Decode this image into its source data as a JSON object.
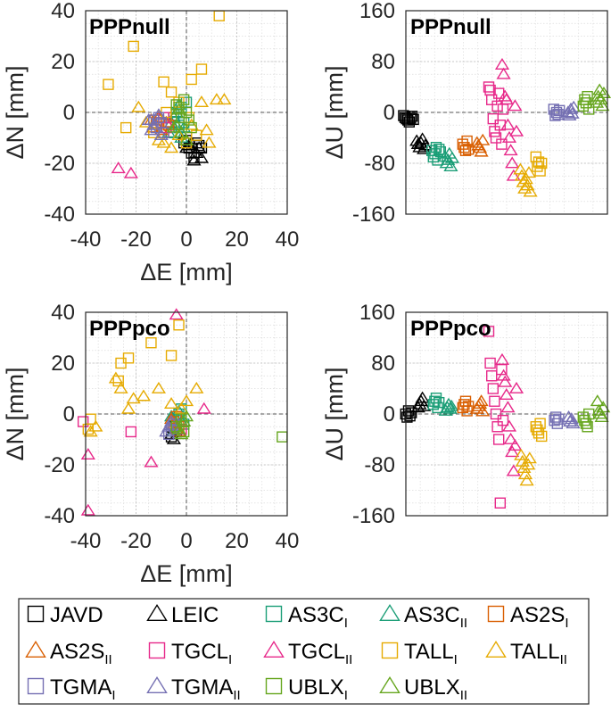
{
  "chart_data": [
    {
      "type": "scatter",
      "title": "PPPnull",
      "xlabel": "ΔE [mm]",
      "ylabel": "ΔN [mm]",
      "xlim": [
        -40,
        40
      ],
      "ylim": [
        -40,
        40
      ],
      "xticks": [
        "-40",
        "-20",
        "0",
        "20",
        "40"
      ],
      "yticks": [
        "-40",
        "-20",
        "0",
        "20",
        "40"
      ],
      "grid": true,
      "description": "Horizontal position errors per receiver/antenna",
      "series": [
        {
          "name": "JAVD",
          "x": [
            -1,
            1,
            2,
            4,
            6,
            3,
            0,
            5
          ],
          "y": [
            -12,
            -14,
            -16,
            -12,
            -14,
            -18,
            -11,
            -13
          ]
        },
        {
          "name": "LEIC",
          "x": [
            0,
            2,
            4,
            6,
            3,
            5,
            1
          ],
          "y": [
            -14,
            -12,
            -16,
            -18,
            -19,
            -14,
            -13
          ]
        },
        {
          "name": "AS3C_I",
          "x": [
            -5,
            -3,
            -6,
            -2,
            -4,
            -1,
            0,
            -3
          ],
          "y": [
            -2,
            -5,
            -8,
            2,
            0,
            -4,
            4,
            -6
          ]
        },
        {
          "name": "AS3C_II",
          "x": [
            -6,
            -4,
            -2,
            -5,
            -3,
            -1,
            -7
          ],
          "y": [
            -4,
            0,
            -10,
            -2,
            3,
            -6,
            -8
          ]
        },
        {
          "name": "AS2S_I",
          "x": [
            -12,
            -10,
            -8,
            -9,
            -11,
            -7
          ],
          "y": [
            -4,
            -6,
            -2,
            -8,
            -3,
            -5
          ]
        },
        {
          "name": "AS2S_II",
          "x": [
            -14,
            -12,
            -10,
            -11,
            -8,
            -13
          ],
          "y": [
            -3,
            -5,
            -7,
            -2,
            -4,
            -6
          ]
        },
        {
          "name": "TGCL_I",
          "x": [
            -10,
            -8,
            -9
          ],
          "y": [
            -4,
            -6,
            -2
          ]
        },
        {
          "name": "TGCL_II",
          "x": [
            -27,
            -22
          ],
          "y": [
            -22,
            -24
          ]
        },
        {
          "name": "TALL_I",
          "x": [
            13,
            -21,
            -31,
            -24,
            6,
            -9,
            2,
            -6,
            -3,
            1,
            4,
            -13,
            -8,
            0
          ],
          "y": [
            38,
            26,
            11,
            -6,
            17,
            12,
            13,
            8,
            4,
            -2,
            -9,
            -8,
            0,
            -12
          ]
        },
        {
          "name": "TALL_II",
          "x": [
            -19,
            -11,
            -6,
            2,
            6,
            12,
            15,
            -16,
            -9,
            -3,
            8,
            9
          ],
          "y": [
            2,
            -11,
            -14,
            -5,
            4,
            5,
            5,
            -4,
            -12,
            -9,
            -7,
            -12
          ]
        },
        {
          "name": "TGMA_I",
          "x": [
            -13,
            -12,
            -10,
            -11,
            -9
          ],
          "y": [
            -3,
            -6,
            -4,
            -2,
            -8
          ]
        },
        {
          "name": "TGMA_II",
          "x": [
            -15,
            -13,
            -11,
            -14,
            -10
          ],
          "y": [
            -3,
            -5,
            -1,
            -7,
            -9
          ]
        },
        {
          "name": "UBLX_I",
          "x": [
            -3,
            -1,
            1,
            -2,
            0,
            -4,
            2
          ],
          "y": [
            2,
            5,
            -3,
            -2,
            0,
            3,
            -6
          ]
        },
        {
          "name": "UBLX_II",
          "x": [
            -4,
            -2,
            0,
            -3,
            -5
          ],
          "y": [
            -5,
            -8,
            -11,
            1,
            -6
          ]
        }
      ]
    },
    {
      "type": "scatter",
      "title": "PPPnull",
      "xlabel": "",
      "ylabel": "ΔU [mm]",
      "ylim": [
        -160,
        160
      ],
      "yticks": [
        "-160",
        "-80",
        "0",
        "80",
        "160"
      ],
      "grid": true,
      "description": "Vertical errors per receiver group (x is sample index)",
      "series": [
        {
          "name": "JAVD",
          "y": [
            -5,
            -8,
            -10,
            -12,
            -15,
            -9,
            -6,
            -11
          ]
        },
        {
          "name": "LEIC",
          "y": [
            -45,
            -50,
            -55,
            -48,
            -42,
            -58,
            -52
          ]
        },
        {
          "name": "AS3C_I",
          "y": [
            -60,
            -70,
            -65,
            -55,
            -75,
            -58,
            -62
          ]
        },
        {
          "name": "AS3C_II",
          "y": [
            -70,
            -80,
            -75,
            -65,
            -85,
            -72
          ]
        },
        {
          "name": "AS2S_I",
          "y": [
            -50,
            -55,
            -60,
            -45,
            -58
          ]
        },
        {
          "name": "AS2S_II",
          "y": [
            -48,
            -52,
            -56,
            -62,
            -44
          ]
        },
        {
          "name": "TGCL_I",
          "y": [
            40,
            35,
            20,
            -10,
            -30,
            -40,
            10,
            30,
            -20,
            -50,
            5
          ]
        },
        {
          "name": "TGCL_II",
          "y": [
            75,
            60,
            25,
            20,
            -20,
            -40,
            -60,
            -80,
            -100,
            10,
            -30
          ]
        },
        {
          "name": "TALL_I",
          "y": [
            -70,
            -85,
            -78,
            -92,
            -80
          ]
        },
        {
          "name": "TALL_II",
          "y": [
            -90,
            -100,
            -110,
            -120,
            -105,
            -115,
            -95,
            -125
          ]
        },
        {
          "name": "TGMA_I",
          "y": [
            5,
            -5,
            0,
            -3,
            3
          ]
        },
        {
          "name": "TGMA_II",
          "y": [
            0,
            -5,
            5,
            -2,
            8
          ]
        },
        {
          "name": "UBLX_I",
          "y": [
            10,
            20,
            15,
            25,
            5
          ]
        },
        {
          "name": "UBLX_II",
          "y": [
            15,
            25,
            35,
            20,
            10,
            30
          ]
        }
      ]
    },
    {
      "type": "scatter",
      "title": "PPPpco",
      "xlabel": "ΔE [mm]",
      "ylabel": "ΔN [mm]",
      "xlim": [
        -40,
        40
      ],
      "ylim": [
        -40,
        40
      ],
      "xticks": [
        "-40",
        "-20",
        "0",
        "20",
        "40"
      ],
      "yticks": [
        "-40",
        "-20",
        "0",
        "20",
        "40"
      ],
      "grid": true,
      "description": "Horizontal position errors after PCO correction",
      "series": [
        {
          "name": "JAVD",
          "x": [
            -6,
            -4,
            -5
          ],
          "y": [
            -9,
            -7,
            -5
          ]
        },
        {
          "name": "LEIC",
          "x": [
            -6,
            -4,
            -5
          ],
          "y": [
            -8,
            -6,
            -10
          ]
        },
        {
          "name": "AS3C_I",
          "x": [
            -5,
            -3,
            -1,
            -4,
            -2
          ],
          "y": [
            -2,
            0,
            -4,
            -6,
            2
          ]
        },
        {
          "name": "AS3C_II",
          "x": [
            -6,
            -4,
            -2,
            -5,
            -3
          ],
          "y": [
            -1,
            -5,
            -3,
            -7,
            1
          ]
        },
        {
          "name": "AS2S_I",
          "x": [
            -5,
            -3,
            -4,
            -2
          ],
          "y": [
            -3,
            -5,
            -1,
            -6
          ]
        },
        {
          "name": "AS2S_II",
          "x": [
            -6,
            -4,
            -5,
            -3
          ],
          "y": [
            -2,
            -6,
            -4,
            -7
          ]
        },
        {
          "name": "TGCL_I",
          "x": [
            -41,
            -22,
            -2
          ],
          "y": [
            -3,
            -7,
            -6
          ]
        },
        {
          "name": "TGCL_II",
          "x": [
            -39,
            -39,
            -14,
            7,
            -4
          ],
          "y": [
            -16,
            -38,
            -19,
            2,
            39
          ]
        },
        {
          "name": "TALL_I",
          "x": [
            -26,
            -27,
            -23,
            -14,
            -6,
            -3,
            -38,
            -39
          ],
          "y": [
            20,
            13,
            22,
            28,
            23,
            35,
            -2,
            -6
          ]
        },
        {
          "name": "TALL_II",
          "x": [
            -26,
            -28,
            -21,
            -23,
            -11,
            -6,
            0,
            4,
            -17,
            -2,
            -36,
            -38
          ],
          "y": [
            10,
            14,
            6,
            2,
            10,
            4,
            5,
            10,
            7,
            2,
            -5,
            -7
          ]
        },
        {
          "name": "TGMA_I",
          "x": [
            -7,
            -5,
            -6
          ],
          "y": [
            -8,
            -4,
            -6
          ]
        },
        {
          "name": "TGMA_II",
          "x": [
            -8,
            -6,
            -7
          ],
          "y": [
            -7,
            -3,
            -5
          ]
        },
        {
          "name": "UBLX_I",
          "x": [
            38,
            -4,
            -2,
            -1
          ],
          "y": [
            -9,
            -5,
            -2,
            -7
          ]
        },
        {
          "name": "UBLX_II",
          "x": [
            -3,
            -1,
            0,
            -2
          ],
          "y": [
            -6,
            -3,
            -1,
            -8
          ]
        }
      ]
    },
    {
      "type": "scatter",
      "title": "PPPpco",
      "xlabel": "",
      "ylabel": "ΔU [mm]",
      "ylim": [
        -160,
        160
      ],
      "yticks": [
        "-160",
        "-80",
        "0",
        "80",
        "160"
      ],
      "grid": true,
      "description": "Vertical errors per receiver group after PCO correction",
      "series": [
        {
          "name": "JAVD",
          "y": [
            0,
            -5,
            5,
            -3,
            2
          ]
        },
        {
          "name": "LEIC",
          "y": [
            10,
            15,
            20,
            25,
            12
          ]
        },
        {
          "name": "AS3C_I",
          "y": [
            15,
            20,
            25,
            10,
            18
          ]
        },
        {
          "name": "AS3C_II",
          "y": [
            5,
            10,
            15,
            8,
            12
          ]
        },
        {
          "name": "AS2S_I",
          "y": [
            10,
            15,
            20,
            5,
            12
          ]
        },
        {
          "name": "AS2S_II",
          "y": [
            8,
            12,
            16,
            20,
            4
          ]
        },
        {
          "name": "TGCL_I",
          "y": [
            130,
            80,
            60,
            40,
            20,
            0,
            -20,
            -40,
            -140,
            70,
            -10
          ]
        },
        {
          "name": "TGCL_II",
          "y": [
            85,
            60,
            50,
            30,
            10,
            -20,
            -40,
            -60,
            -90,
            -50,
            40
          ]
        },
        {
          "name": "TALL_I",
          "y": [
            -20,
            -25,
            -30,
            -15,
            -35
          ]
        },
        {
          "name": "TALL_II",
          "y": [
            -65,
            -75,
            -85,
            -95,
            -105,
            -80,
            -70
          ]
        },
        {
          "name": "TGMA_I",
          "y": [
            -10,
            -5,
            -15,
            -8
          ]
        },
        {
          "name": "TGMA_II",
          "y": [
            -5,
            -12,
            -8,
            -15
          ]
        },
        {
          "name": "UBLX_I",
          "y": [
            -5,
            -10,
            -15,
            -20,
            0
          ]
        },
        {
          "name": "UBLX_II",
          "y": [
            20,
            5,
            0,
            -5,
            10
          ]
        }
      ]
    }
  ],
  "legend": {
    "placement": "bottom",
    "entries": [
      {
        "key": "JAVD",
        "label": "JAVD",
        "sub": "",
        "marker": "square",
        "color": "#000000"
      },
      {
        "key": "LEIC",
        "label": "LEIC",
        "sub": "",
        "marker": "triangle",
        "color": "#000000"
      },
      {
        "key": "AS3C_I",
        "label": "AS3C",
        "sub": "I",
        "marker": "square",
        "color": "#1b9e77"
      },
      {
        "key": "AS3C_II",
        "label": "AS3C",
        "sub": "II",
        "marker": "triangle",
        "color": "#1b9e77"
      },
      {
        "key": "AS2S_I",
        "label": "AS2S",
        "sub": "I",
        "marker": "square",
        "color": "#d95f02"
      },
      {
        "key": "AS2S_II",
        "label": "AS2S",
        "sub": "II",
        "marker": "triangle",
        "color": "#d95f02"
      },
      {
        "key": "TGCL_I",
        "label": "TGCL",
        "sub": "I",
        "marker": "square",
        "color": "#e7298a"
      },
      {
        "key": "TGCL_II",
        "label": "TGCL",
        "sub": "II",
        "marker": "triangle",
        "color": "#e7298a"
      },
      {
        "key": "TALL_I",
        "label": "TALL",
        "sub": "I",
        "marker": "square",
        "color": "#e6ab02"
      },
      {
        "key": "TALL_II",
        "label": "TALL",
        "sub": "II",
        "marker": "triangle",
        "color": "#e6ab02"
      },
      {
        "key": "TGMA_I",
        "label": "TGMA",
        "sub": "I",
        "marker": "square",
        "color": "#7570b3"
      },
      {
        "key": "TGMA_II",
        "label": "TGMA",
        "sub": "II",
        "marker": "triangle",
        "color": "#7570b3"
      },
      {
        "key": "UBLX_I",
        "label": "UBLX",
        "sub": "I",
        "marker": "square",
        "color": "#66a61e"
      },
      {
        "key": "UBLX_II",
        "label": "UBLX",
        "sub": "II",
        "marker": "triangle",
        "color": "#66a61e"
      }
    ]
  }
}
